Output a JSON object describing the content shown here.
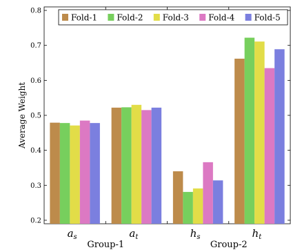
{
  "chart_data": {
    "type": "bar",
    "categories": [
      {
        "main": "a",
        "sub": "s"
      },
      {
        "main": "a",
        "sub": "t"
      },
      {
        "main": "h",
        "sub": "s"
      },
      {
        "main": "h",
        "sub": "t"
      }
    ],
    "groups": [
      {
        "label": "Group-1",
        "categories": [
          0,
          1
        ]
      },
      {
        "label": "Group-2",
        "categories": [
          2,
          3
        ]
      }
    ],
    "series": [
      {
        "name": "Fold-1",
        "color": "#bd8b4b",
        "values": [
          0.479,
          0.522,
          0.34,
          0.662
        ]
      },
      {
        "name": "Fold-2",
        "color": "#77cf5d",
        "values": [
          0.478,
          0.523,
          0.281,
          0.722
        ]
      },
      {
        "name": "Fold-3",
        "color": "#e2dd48",
        "values": [
          0.471,
          0.53,
          0.291,
          0.711
        ]
      },
      {
        "name": "Fold-4",
        "color": "#dc79c3",
        "values": [
          0.485,
          0.515,
          0.366,
          0.635
        ]
      },
      {
        "name": "Fold-5",
        "color": "#7b7fdf",
        "values": [
          0.478,
          0.522,
          0.314,
          0.689
        ]
      }
    ],
    "ylabel": "Average Weight",
    "xlabel": "",
    "ylim": [
      0.19,
      0.81
    ],
    "yticks": [
      "0.2",
      "0.3",
      "0.4",
      "0.5",
      "0.6",
      "0.7",
      "0.8"
    ],
    "grid": false,
    "legend_position": "top-right"
  }
}
